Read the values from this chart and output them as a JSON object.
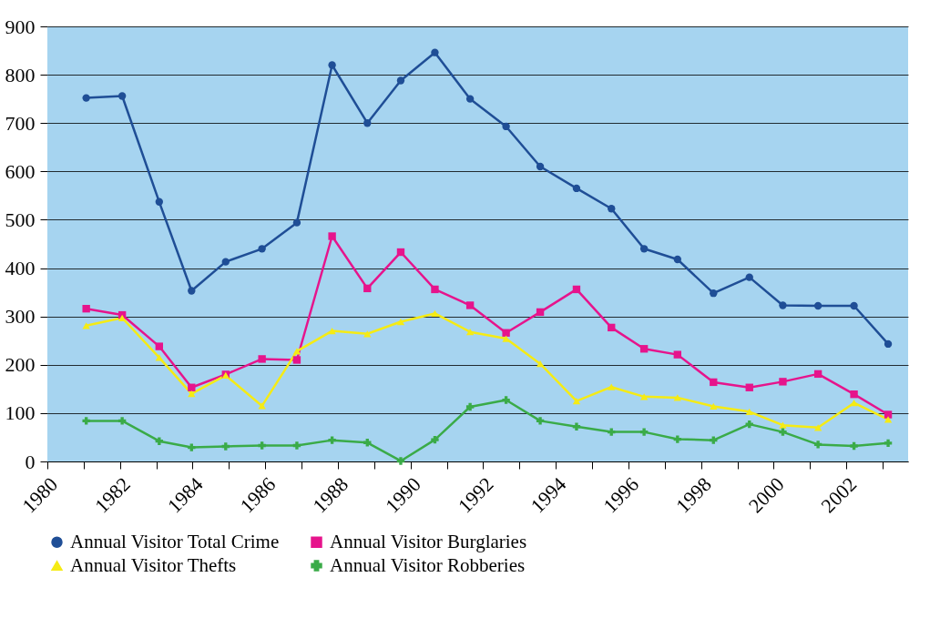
{
  "chart_data": {
    "type": "line",
    "x": [
      1981.07,
      1982.06,
      1983.08,
      1983.97,
      1984.91,
      1985.91,
      1986.87,
      1987.84,
      1988.81,
      1989.73,
      1990.67,
      1991.64,
      1992.63,
      1993.57,
      1994.57,
      1995.53,
      1996.43,
      1997.35,
      1998.34,
      1999.33,
      2000.25,
      2001.22,
      2002.21,
      2003.15
    ],
    "series": [
      {
        "name": "Annual Visitor Total Crime",
        "color": "#1f4e96",
        "marker": "circle",
        "values": [
          752,
          756,
          537,
          353,
          413,
          440,
          494,
          820,
          700,
          788,
          846,
          750,
          693,
          610,
          565,
          523,
          440,
          418,
          348,
          381,
          323,
          322,
          322,
          243
        ]
      },
      {
        "name": "Annual Visitor Burglaries",
        "color": "#e6148c",
        "marker": "square",
        "values": [
          316,
          303,
          238,
          153,
          180,
          212,
          210,
          466,
          358,
          433,
          356,
          323,
          266,
          309,
          356,
          277,
          233,
          221,
          164,
          153,
          165,
          181,
          139,
          97
        ]
      },
      {
        "name": "Annual Visitor Thefts",
        "color": "#f5eb14",
        "marker": "triangle",
        "values": [
          281,
          297,
          215,
          140,
          178,
          115,
          228,
          270,
          264,
          289,
          306,
          268,
          254,
          202,
          125,
          154,
          134,
          132,
          114,
          103,
          75,
          70,
          121,
          87
        ]
      },
      {
        "name": "Annual Visitor Robberies",
        "color": "#3aab48",
        "marker": "cross",
        "values": [
          84,
          84,
          42,
          29,
          31,
          33,
          33,
          44,
          39,
          1,
          45,
          113,
          127,
          84,
          72,
          61,
          61,
          46,
          44,
          77,
          61,
          35,
          32,
          38
        ]
      }
    ],
    "xlim": [
      1980,
      2003.7
    ],
    "xticks": [
      1980,
      {
        "value": 1981,
        "label": null
      },
      1982,
      {
        "value": 1983,
        "label": null
      },
      1984,
      {
        "value": 1985,
        "label": null
      },
      1986,
      {
        "value": 1987,
        "label": null
      },
      1988,
      {
        "value": 1989,
        "label": null
      },
      1990,
      {
        "value": 1991,
        "label": null
      },
      1992,
      {
        "value": 1993,
        "label": null
      },
      1994,
      {
        "value": 1995,
        "label": null
      },
      1996,
      {
        "value": 1997,
        "label": null
      },
      1998,
      {
        "value": 1999,
        "label": null
      },
      2000,
      {
        "value": 2001,
        "label": null
      },
      2002,
      {
        "value": 2003,
        "label": null
      }
    ],
    "ylim": [
      0,
      900
    ],
    "yticks": [
      0,
      100,
      200,
      300,
      400,
      500,
      600,
      700,
      800,
      900
    ],
    "grid": "y",
    "legend": "bottom",
    "line_style": "solid"
  }
}
